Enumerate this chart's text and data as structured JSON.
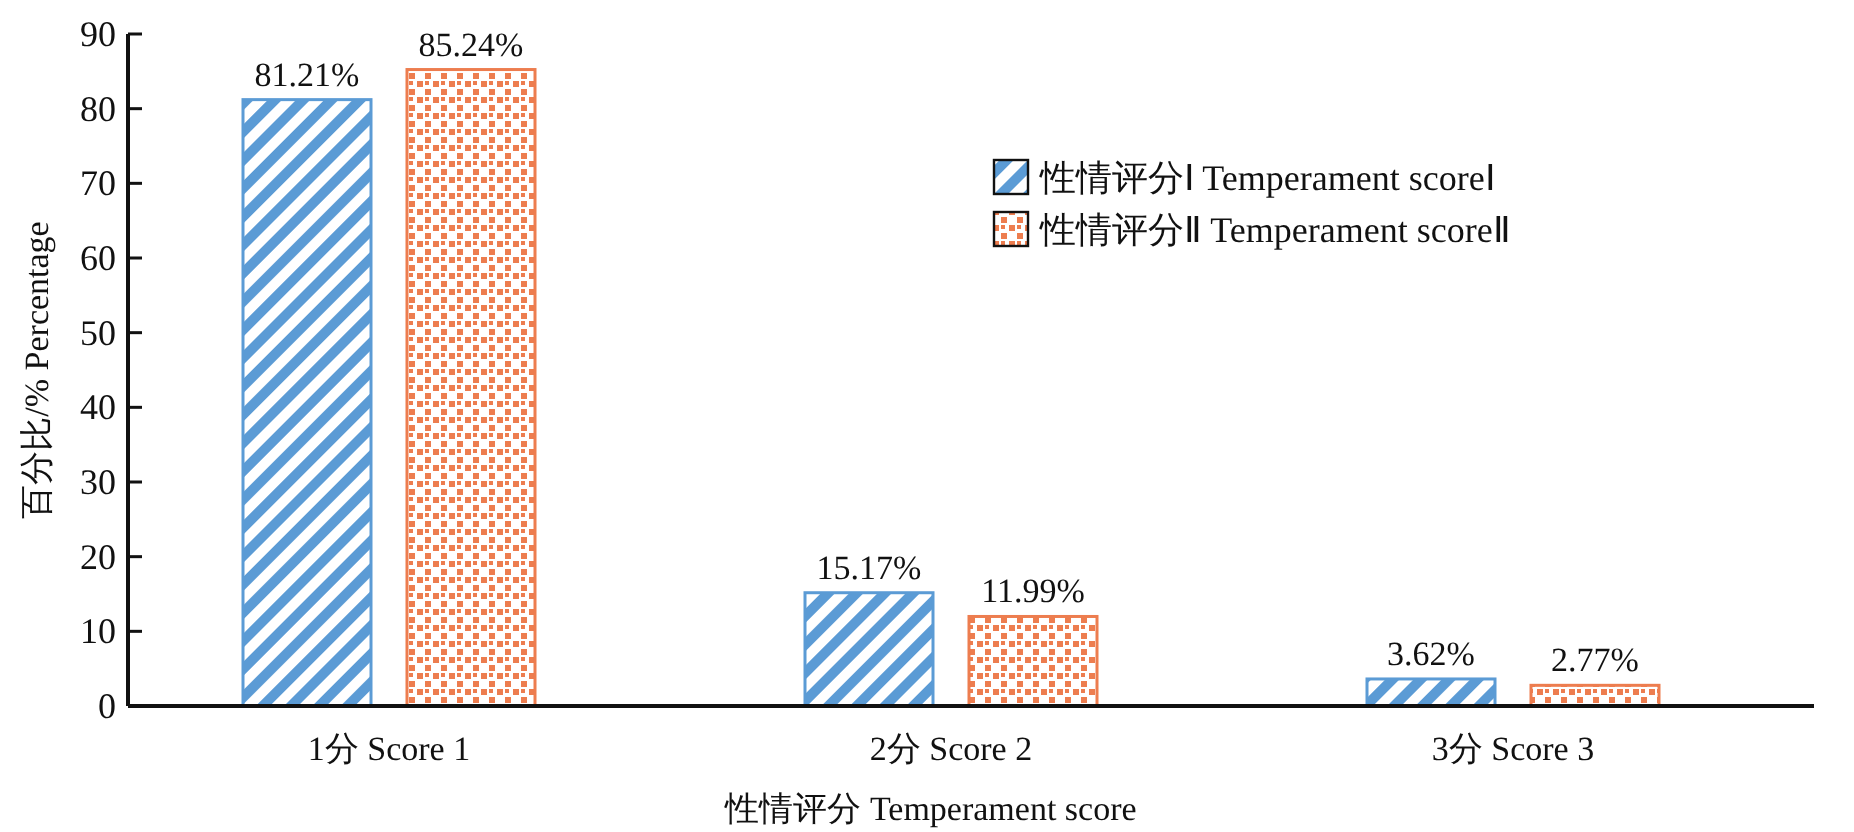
{
  "chart_data": {
    "type": "bar",
    "categories": [
      "1分  Score 1",
      "2分  Score 2",
      "3分  Score 3"
    ],
    "xlabel": "性情评分  Temperament score",
    "ylabel": "百分比/%  Percentage",
    "ylim": [
      0,
      90
    ],
    "yticks": [
      0,
      10,
      20,
      30,
      40,
      50,
      60,
      70,
      80,
      90
    ],
    "legend": "top right",
    "series": [
      {
        "name": "性情评分Ⅰ Temperament scoreⅠ",
        "color": "#5b9bd5",
        "values": [
          81.21,
          15.17,
          3.62
        ],
        "value_labels": [
          "81.21%",
          "15.17%",
          "3.62%"
        ]
      },
      {
        "name": "性情评分Ⅱ Temperament scoreⅡ",
        "color": "#ed7d4f",
        "values": [
          85.24,
          11.99,
          2.77
        ],
        "value_labels": [
          "85.24%",
          "11.99%",
          "2.77%"
        ]
      }
    ]
  }
}
